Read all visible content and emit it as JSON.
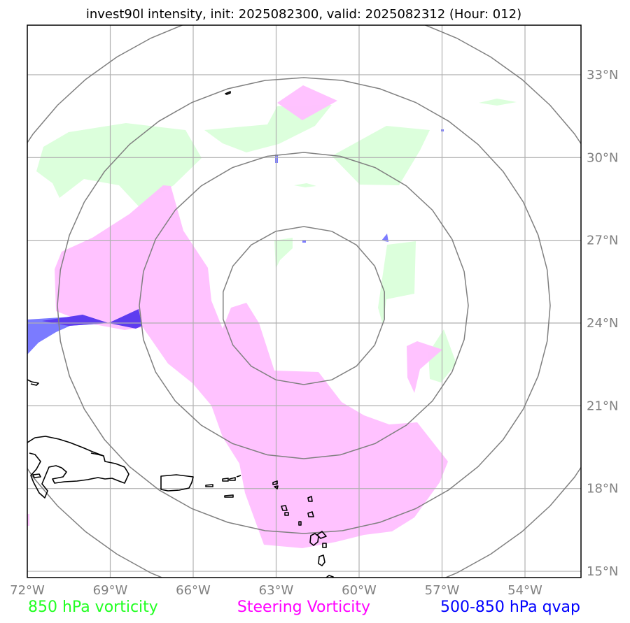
{
  "title": "invest90l intensity, init: 2025082300, valid: 2025082312 (Hour: 012)",
  "map": {
    "lon_range": [
      -72,
      -52.7
    ],
    "lat_range": [
      14.9,
      35.0
    ],
    "storm_center": {
      "lon": -62,
      "lat": 25.5
    },
    "x_ticks": [
      {
        "value": -72,
        "label": "72°W"
      },
      {
        "value": -69,
        "label": "69°W"
      },
      {
        "value": -66,
        "label": "66°W"
      },
      {
        "value": -63,
        "label": "63°W"
      },
      {
        "value": -60,
        "label": "60°W"
      },
      {
        "value": -57,
        "label": "57°W"
      },
      {
        "value": -54,
        "label": "54°W"
      }
    ],
    "y_ticks": [
      {
        "value": 33,
        "label": "33°N"
      },
      {
        "value": 30,
        "label": "30°N"
      },
      {
        "value": 27,
        "label": "27°N"
      },
      {
        "value": 24,
        "label": "24°N"
      },
      {
        "value": 21,
        "label": "21°N"
      },
      {
        "value": 18,
        "label": "18°N"
      },
      {
        "value": 15,
        "label": "15°N"
      }
    ]
  },
  "legend": {
    "vort850": {
      "label": "850 hPa vorticity",
      "color": "#22ff22"
    },
    "steering": {
      "label": "Steering Vorticity",
      "color": "#ff00ff"
    },
    "qvap": {
      "label": "500-850 hPa qvap",
      "color": "#0000ff"
    }
  },
  "colors": {
    "vort850_fill": "#dcffdc",
    "steering_fill": "#ffbfff",
    "qvap_fill": "#7b7bff",
    "qvap_dark": "#5e3cf0"
  }
}
